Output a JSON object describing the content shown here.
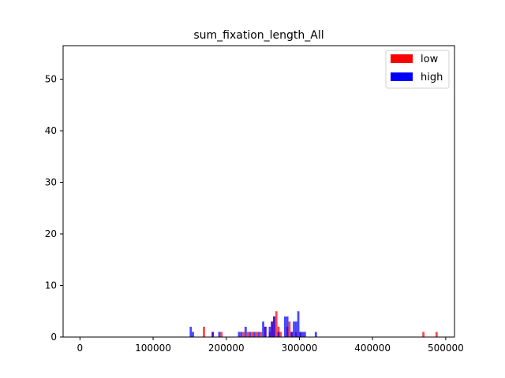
{
  "chart_data": {
    "type": "histogram",
    "title": "sum_fixation_length_All",
    "xlabel": "",
    "ylabel": "",
    "xlim": [
      -23000,
      512000
    ],
    "ylim": [
      0,
      56.5
    ],
    "x_ticks": [
      0,
      100000,
      200000,
      300000,
      400000,
      500000
    ],
    "x_tick_labels": [
      "0",
      "100000",
      "200000",
      "300000",
      "400000",
      "500000"
    ],
    "y_ticks": [
      0,
      10,
      20,
      30,
      40,
      50
    ],
    "y_tick_labels": [
      "0",
      "10",
      "20",
      "30",
      "40",
      "50"
    ],
    "bin_width": 3000,
    "grid": false,
    "legend_position": "top-right",
    "series": [
      {
        "name": "low",
        "color": "#ff0000",
        "bins": [
          [
            168000,
            2
          ],
          [
            180000,
            1
          ],
          [
            192000,
            1
          ],
          [
            222000,
            1
          ],
          [
            228000,
            1
          ],
          [
            234000,
            1
          ],
          [
            240000,
            1
          ],
          [
            246000,
            1
          ],
          [
            252000,
            2
          ],
          [
            258000,
            1
          ],
          [
            261000,
            3
          ],
          [
            264000,
            4
          ],
          [
            267000,
            5
          ],
          [
            270000,
            2
          ],
          [
            273000,
            1
          ],
          [
            282000,
            2
          ],
          [
            285000,
            3
          ],
          [
            288000,
            1
          ],
          [
            294000,
            1
          ],
          [
            300000,
            1
          ],
          [
            468000,
            1
          ],
          [
            486000,
            1
          ]
        ]
      },
      {
        "name": "high",
        "color": "#0000ff",
        "bins": [
          [
            150000,
            2
          ],
          [
            153000,
            1
          ],
          [
            180000,
            1
          ],
          [
            189000,
            1
          ],
          [
            216000,
            1
          ],
          [
            219000,
            1
          ],
          [
            225000,
            2
          ],
          [
            231000,
            1
          ],
          [
            237000,
            1
          ],
          [
            243000,
            1
          ],
          [
            249000,
            3
          ],
          [
            252000,
            2
          ],
          [
            258000,
            2
          ],
          [
            261000,
            3
          ],
          [
            264000,
            4
          ],
          [
            270000,
            1
          ],
          [
            279000,
            4
          ],
          [
            282000,
            4
          ],
          [
            288000,
            1
          ],
          [
            291000,
            3
          ],
          [
            294000,
            3
          ],
          [
            297000,
            5
          ],
          [
            300000,
            1
          ],
          [
            303000,
            1
          ],
          [
            306000,
            1
          ],
          [
            321000,
            1
          ]
        ]
      }
    ]
  }
}
